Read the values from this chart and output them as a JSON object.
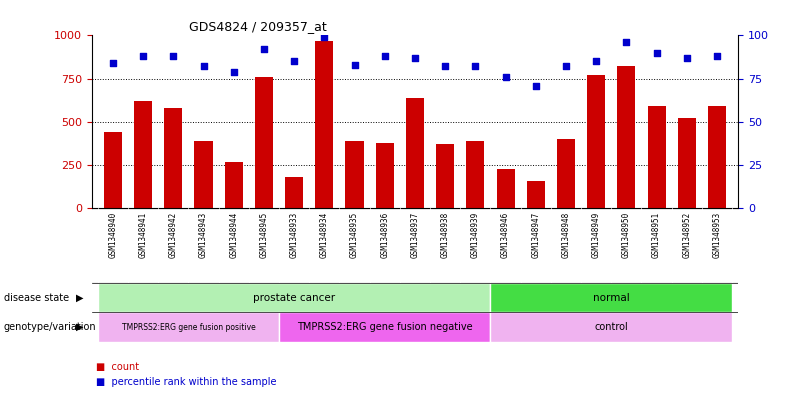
{
  "title": "GDS4824 / 209357_at",
  "samples": [
    "GSM1348940",
    "GSM1348941",
    "GSM1348942",
    "GSM1348943",
    "GSM1348944",
    "GSM1348945",
    "GSM1348933",
    "GSM1348934",
    "GSM1348935",
    "GSM1348936",
    "GSM1348937",
    "GSM1348938",
    "GSM1348939",
    "GSM1348946",
    "GSM1348947",
    "GSM1348948",
    "GSM1348949",
    "GSM1348950",
    "GSM1348951",
    "GSM1348952",
    "GSM1348953"
  ],
  "counts": [
    440,
    620,
    580,
    390,
    270,
    760,
    180,
    970,
    390,
    380,
    640,
    370,
    390,
    230,
    160,
    400,
    770,
    820,
    590,
    520,
    590
  ],
  "percentiles": [
    84,
    88,
    88,
    82,
    79,
    92,
    85,
    99,
    83,
    88,
    87,
    82,
    82,
    76,
    71,
    82,
    85,
    96,
    90,
    87,
    88
  ],
  "bar_color": "#cc0000",
  "dot_color": "#0000cc",
  "ylim_left": [
    0,
    1000
  ],
  "ylim_right": [
    0,
    100
  ],
  "yticks_left": [
    0,
    250,
    500,
    750,
    1000
  ],
  "yticks_right": [
    0,
    25,
    50,
    75,
    100
  ],
  "grid_lines": [
    250,
    500,
    750
  ],
  "disease_state_groups": [
    {
      "label": "prostate cancer",
      "start": 0,
      "end": 13,
      "color": "#b3f0b3"
    },
    {
      "label": "normal",
      "start": 13,
      "end": 21,
      "color": "#44dd44"
    }
  ],
  "genotype_groups": [
    {
      "label": "TMPRSS2:ERG gene fusion positive",
      "start": 0,
      "end": 6,
      "color": "#f0b3f0"
    },
    {
      "label": "TMPRSS2:ERG gene fusion negative",
      "start": 6,
      "end": 13,
      "color": "#ee66ee"
    },
    {
      "label": "control",
      "start": 13,
      "end": 21,
      "color": "#f0b3f0"
    }
  ],
  "legend_count_color": "#cc0000",
  "legend_dot_color": "#0000cc",
  "legend_count_label": "count",
  "legend_dot_label": "percentile rank within the sample",
  "disease_state_label": "disease state",
  "genotype_label": "genotype/variation",
  "bg_color": "#ffffff",
  "axis_label_color_left": "#cc0000",
  "axis_label_color_right": "#0000cc",
  "tick_bg_color": "#cccccc"
}
